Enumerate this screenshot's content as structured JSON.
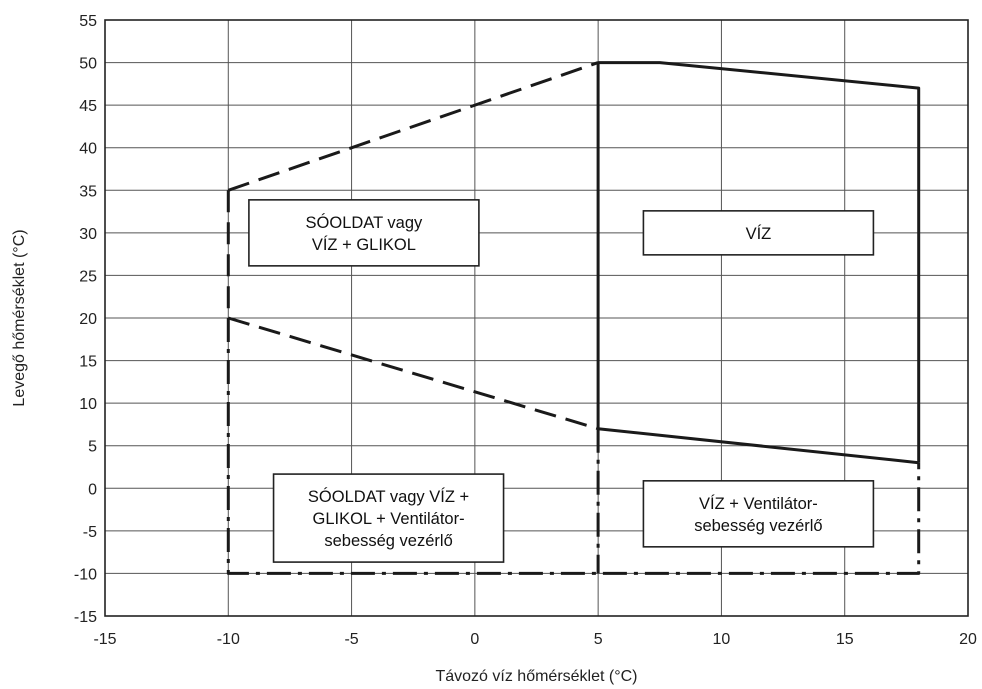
{
  "chart_data": {
    "type": "line",
    "xlabel": "Távozó víz hőmérséklet (°C)",
    "ylabel": "Levegő hőmérséklet (°C)",
    "xlim": [
      -15,
      20
    ],
    "ylim": [
      -15,
      55
    ],
    "x_ticks": [
      -15,
      -10,
      -5,
      0,
      5,
      10,
      15,
      20
    ],
    "y_ticks": [
      -15,
      -10,
      -5,
      0,
      5,
      10,
      15,
      20,
      25,
      30,
      35,
      40,
      45,
      50,
      55
    ],
    "x_tick_labels": [
      "-15",
      "-10",
      "-5",
      "0",
      "5",
      "10",
      "15",
      "20"
    ],
    "y_tick_labels": [
      "-15",
      "-10",
      "-5",
      "0",
      "5",
      "10",
      "15",
      "20",
      "25",
      "30",
      "35",
      "40",
      "45",
      "50",
      "55"
    ],
    "grid": true,
    "series": [
      {
        "style": "dashed",
        "points": [
          [
            -10,
            35
          ],
          [
            5,
            50
          ]
        ]
      },
      {
        "style": "solid",
        "points": [
          [
            5,
            50
          ],
          [
            7.5,
            50
          ],
          [
            18,
            47
          ],
          [
            18,
            3
          ]
        ]
      },
      {
        "style": "solid",
        "points": [
          [
            5,
            50
          ],
          [
            5,
            7
          ]
        ]
      },
      {
        "style": "dashed",
        "points": [
          [
            -10,
            20
          ],
          [
            5,
            7
          ]
        ]
      },
      {
        "style": "solid",
        "points": [
          [
            5,
            7
          ],
          [
            18,
            3
          ]
        ]
      },
      {
        "style": "dashed",
        "points": [
          [
            -10,
            35
          ],
          [
            -10,
            20
          ]
        ]
      },
      {
        "style": "dashdot",
        "points": [
          [
            -10,
            20
          ],
          [
            -10,
            -10
          ],
          [
            18,
            -10
          ],
          [
            18,
            3
          ]
        ]
      },
      {
        "style": "dashdot",
        "points": [
          [
            5,
            7
          ],
          [
            5,
            -10
          ]
        ]
      }
    ],
    "regions": [
      {
        "lines": [
          "SÓOLDAT vagy",
          "VÍZ + GLIKOL"
        ],
        "center": [
          -4.5,
          30
        ]
      },
      {
        "lines": [
          "VÍZ"
        ],
        "center": [
          11.5,
          30
        ]
      },
      {
        "lines": [
          "SÓOLDAT vagy VÍZ +",
          "GLIKOL + Ventilátor-",
          "sebesség vezérlő"
        ],
        "center": [
          -3.5,
          -3.5
        ]
      },
      {
        "lines": [
          "VÍZ + Ventilátor-",
          "sebesség vezérlő"
        ],
        "center": [
          11.5,
          -3
        ]
      }
    ]
  }
}
